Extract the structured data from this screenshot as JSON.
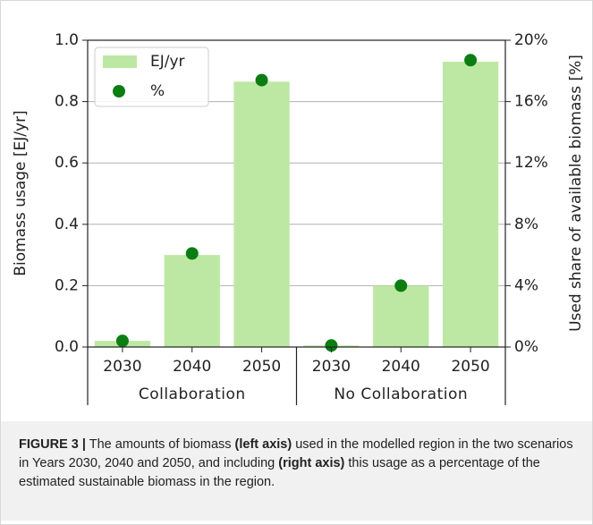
{
  "chart_data": {
    "type": "bar",
    "y_label": "Biomass usage [EJ/yr]",
    "y2_label": "Used share of available biomass [%]",
    "categories": [
      "2030",
      "2040",
      "2050",
      "2030",
      "2040",
      "2050"
    ],
    "groups": [
      "Collaboration",
      "No Collaboration"
    ],
    "series": [
      {
        "name": "EJ/yr",
        "color": "#bde8a4",
        "values": [
          0.02,
          0.3,
          0.865,
          0.005,
          0.2,
          0.93
        ]
      },
      {
        "name": "%",
        "color": "#0b7d12",
        "axis": "y2",
        "values": [
          0.4,
          6.1,
          17.4,
          0.1,
          4.0,
          18.7
        ]
      }
    ],
    "ylim": [
      0,
      1.0
    ],
    "yticks": [
      {
        "value": 0,
        "label": "0.0"
      },
      0.2,
      0.4,
      0.6,
      0.8,
      {
        "value": 1,
        "label": "1.0"
      }
    ],
    "y2lim": [
      0,
      20
    ],
    "y2ticks": [
      {
        "value": 0,
        "label": "0%"
      },
      {
        "value": 4,
        "label": "4%"
      },
      {
        "value": 8,
        "label": "8%"
      },
      {
        "value": 12,
        "label": "12%"
      },
      {
        "value": 16,
        "label": "16%"
      },
      {
        "value": 20,
        "label": "20%"
      }
    ],
    "grid": true,
    "legend": "upper left"
  },
  "caption": [
    {
      "text": "FIGURE 3 |",
      "bold": true
    },
    {
      "text": " The amounts of biomass ",
      "bold": false
    },
    {
      "text": "(left axis)",
      "bold": true
    },
    {
      "text": " used in the modelled region in the two scenarios in Years 2030, 2040 and 2050, and including ",
      "bold": false
    },
    {
      "text": "(right axis)",
      "bold": true
    },
    {
      "text": " this usage as a percentage of the estimated sustainable biomass in the region.",
      "bold": false
    }
  ]
}
